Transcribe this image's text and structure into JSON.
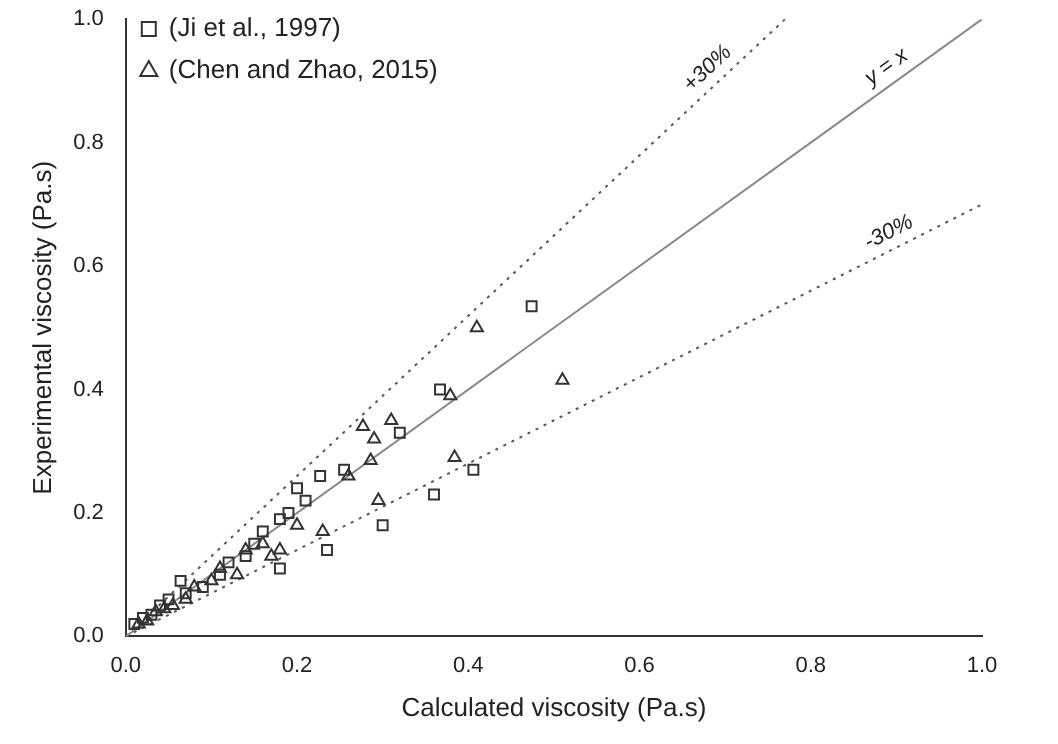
{
  "chart_data": {
    "type": "scatter",
    "xlabel": "Calculated viscosity (Pa.s)",
    "ylabel": "Experimental viscosity (Pa.s)",
    "xlim": [
      0,
      1
    ],
    "ylim": [
      0,
      1
    ],
    "xticks": [
      {
        "value": 0,
        "label": "0.0"
      },
      0.2,
      0.4,
      0.6,
      0.8,
      {
        "value": 1,
        "label": "1.0"
      }
    ],
    "yticks": [
      {
        "value": 0,
        "label": "0.0"
      },
      0.2,
      0.4,
      0.6,
      0.8,
      {
        "value": 1,
        "label": "1.0"
      }
    ],
    "legend": "top left",
    "grid": false,
    "series": [
      {
        "name": "(Ji et al., 1997)",
        "marker": "square",
        "color": "#333333",
        "x": [
          0.01,
          0.02,
          0.03,
          0.04,
          0.05,
          0.064,
          0.07,
          0.09,
          0.11,
          0.12,
          0.14,
          0.15,
          0.16,
          0.18,
          0.19,
          0.2,
          0.21,
          0.227,
          0.255,
          0.18,
          0.235,
          0.3,
          0.32,
          0.36,
          0.367,
          0.406,
          0.474
        ],
        "values": [
          0.02,
          0.03,
          0.035,
          0.05,
          0.06,
          0.09,
          0.07,
          0.08,
          0.1,
          0.12,
          0.13,
          0.15,
          0.17,
          0.19,
          0.2,
          0.24,
          0.22,
          0.26,
          0.27,
          0.11,
          0.14,
          0.18,
          0.33,
          0.23,
          0.4,
          0.27,
          0.535
        ]
      },
      {
        "name": "(Chen and Zhao, 2015)",
        "marker": "triangle",
        "color": "#333333",
        "x": [
          0.015,
          0.025,
          0.035,
          0.045,
          0.055,
          0.07,
          0.08,
          0.1,
          0.11,
          0.13,
          0.14,
          0.16,
          0.17,
          0.18,
          0.2,
          0.23,
          0.26,
          0.277,
          0.286,
          0.29,
          0.295,
          0.31,
          0.379,
          0.384,
          0.41,
          0.51
        ],
        "values": [
          0.02,
          0.025,
          0.04,
          0.045,
          0.05,
          0.06,
          0.08,
          0.09,
          0.11,
          0.1,
          0.14,
          0.15,
          0.13,
          0.14,
          0.18,
          0.17,
          0.26,
          0.34,
          0.285,
          0.32,
          0.22,
          0.35,
          0.39,
          0.29,
          0.5,
          0.415
        ]
      },
      {
        "name": "y = x",
        "type": "line",
        "line_style": "solid",
        "marker": "none",
        "color": "#888888",
        "x": [
          0,
          1
        ],
        "values": [
          0,
          1
        ]
      },
      {
        "name": "+30%",
        "type": "line",
        "line_style": "dotted",
        "marker": "none",
        "color": "#555555",
        "x": [
          0,
          0.77
        ],
        "values": [
          0,
          1
        ]
      },
      {
        "name": "-30%",
        "type": "line",
        "line_style": "dotted",
        "marker": "none",
        "color": "#555555",
        "x": [
          0,
          1
        ],
        "values": [
          0,
          0.7
        ]
      }
    ]
  }
}
